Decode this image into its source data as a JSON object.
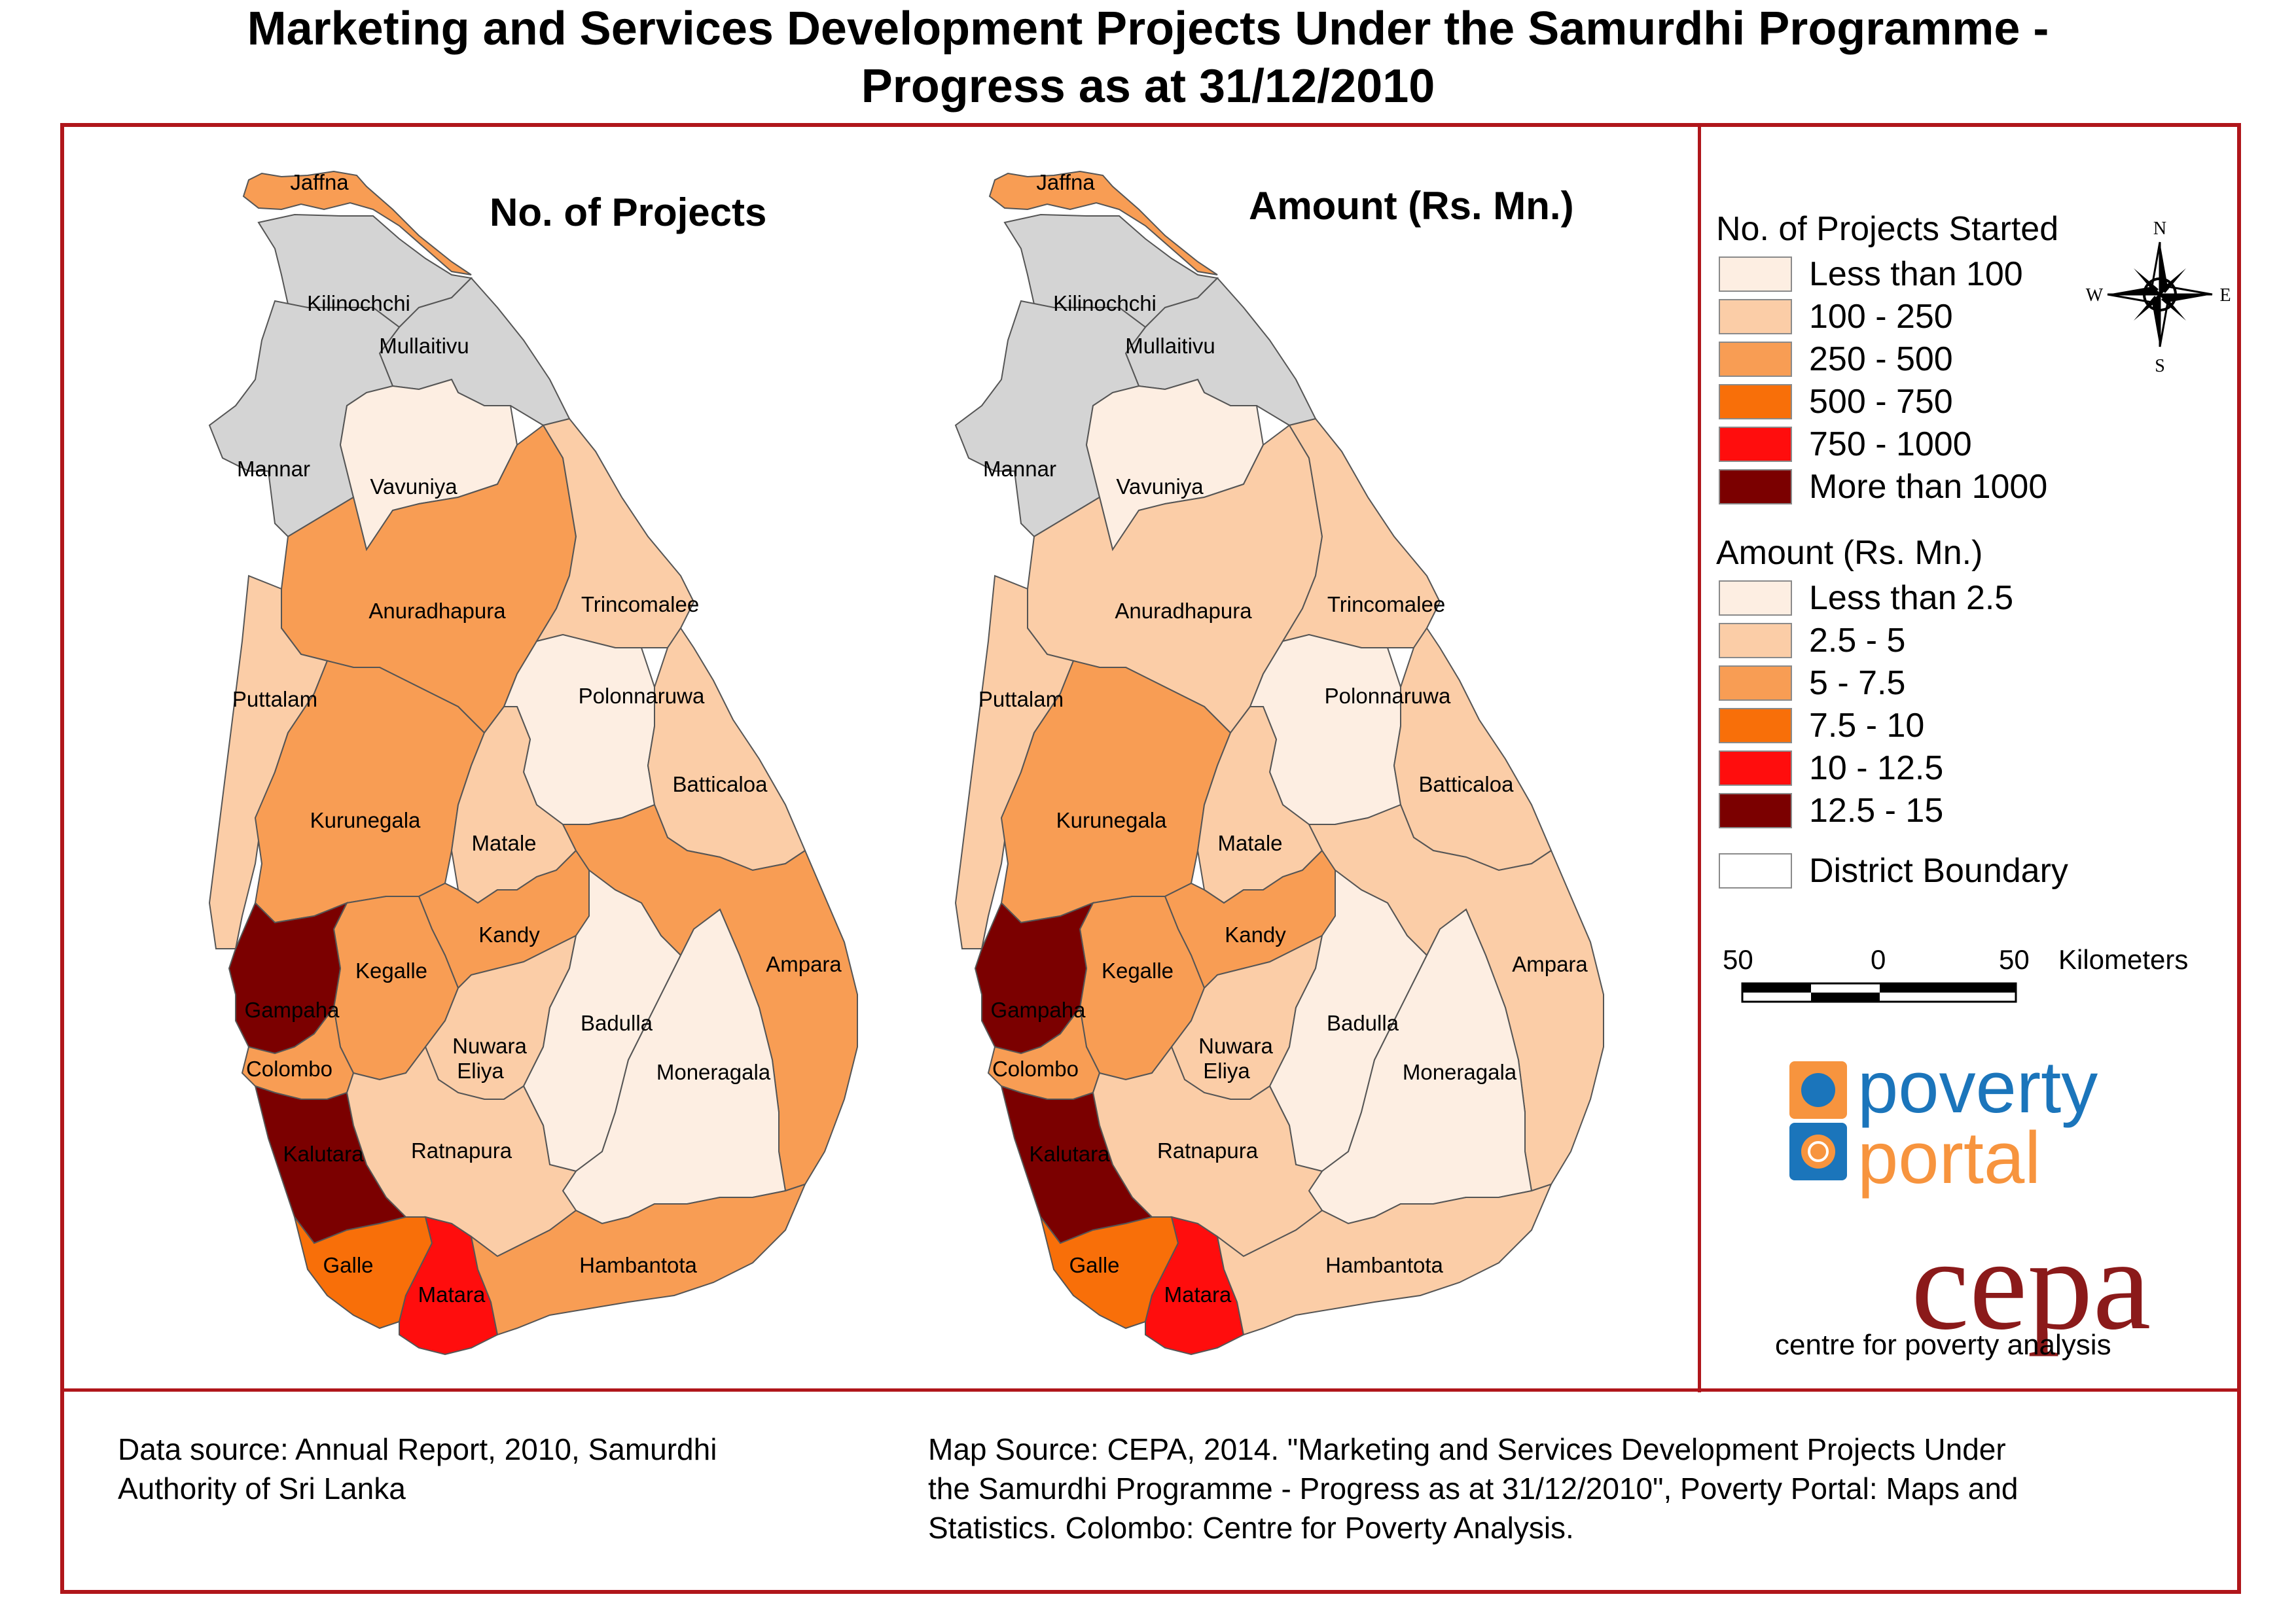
{
  "title": {
    "line1": "Marketing and Services Development Projects Under the Samurdhi Programme  -",
    "line2": "Progress as at 31/12/2010"
  },
  "maps": {
    "projects_title": "No. of Projects",
    "amount_title": "Amount (Rs. Mn.)"
  },
  "colors": {
    "class1": "#fdeee2",
    "class2": "#fbcda7",
    "class3": "#f89d54",
    "class4": "#f86f09",
    "class5": "#ff0d0d",
    "class6": "#7b0000",
    "no_data": "#d4d4d4",
    "frame": "#b0161b"
  },
  "districts": [
    {
      "name": "Jaffna",
      "projects": "class3",
      "amount": "class3"
    },
    {
      "name": "Kilinochchi",
      "projects": "no_data",
      "amount": "no_data"
    },
    {
      "name": "Mullaitivu",
      "projects": "no_data",
      "amount": "no_data"
    },
    {
      "name": "Mannar",
      "projects": "no_data",
      "amount": "no_data"
    },
    {
      "name": "Vavuniya",
      "projects": "class1",
      "amount": "class1"
    },
    {
      "name": "Anuradhapura",
      "projects": "class3",
      "amount": "class2"
    },
    {
      "name": "Trincomalee",
      "projects": "class2",
      "amount": "class2"
    },
    {
      "name": "Puttalam",
      "projects": "class2",
      "amount": "class2"
    },
    {
      "name": "Polonnaruwa",
      "projects": "class1",
      "amount": "class1"
    },
    {
      "name": "Batticaloa",
      "projects": "class2",
      "amount": "class2"
    },
    {
      "name": "Kurunegala",
      "projects": "class3",
      "amount": "class3"
    },
    {
      "name": "Matale",
      "projects": "class2",
      "amount": "class2"
    },
    {
      "name": "Kandy",
      "projects": "class3",
      "amount": "class3"
    },
    {
      "name": "Ampara",
      "projects": "class3",
      "amount": "class2"
    },
    {
      "name": "Kegalle",
      "projects": "class3",
      "amount": "class3"
    },
    {
      "name": "Gampaha",
      "projects": "class6",
      "amount": "class6"
    },
    {
      "name": "Colombo",
      "projects": "class3",
      "amount": "class3"
    },
    {
      "name": "Nuwara Eliya",
      "label1": "Nuwara",
      "label2": "Eliya",
      "projects": "class2",
      "amount": "class2"
    },
    {
      "name": "Badulla",
      "projects": "class1",
      "amount": "class1"
    },
    {
      "name": "Moneragala",
      "projects": "class1",
      "amount": "class1"
    },
    {
      "name": "Kalutara",
      "projects": "class6",
      "amount": "class6"
    },
    {
      "name": "Ratnapura",
      "projects": "class2",
      "amount": "class2"
    },
    {
      "name": "Galle",
      "projects": "class4",
      "amount": "class4"
    },
    {
      "name": "Matara",
      "projects": "class5",
      "amount": "class5"
    },
    {
      "name": "Hambantota",
      "projects": "class3",
      "amount": "class2"
    }
  ],
  "legend": {
    "projects_heading": "No. of Projects Started",
    "projects_classes": [
      "Less than  100",
      "100 - 250",
      "250 - 500",
      "500 - 750",
      "750 - 1000",
      "More than 1000"
    ],
    "amount_heading": "Amount (Rs. Mn.)",
    "amount_classes": [
      "Less than 2.5",
      "2.5 - 5",
      "5 - 7.5",
      "7.5 - 10",
      "10 - 12.5",
      "12.5 - 15"
    ],
    "boundary_label": "District Boundary"
  },
  "compass": {
    "n": "N",
    "s": "S",
    "e": "E",
    "w": "W"
  },
  "scale": {
    "left": "50",
    "mid": "0",
    "right": "50",
    "unit": "Kilometers"
  },
  "logos": {
    "poverty_line1": "poverty",
    "poverty_line2": "portal",
    "cepa": "cepa",
    "cepa_tagline": "centre for poverty analysis"
  },
  "footer": {
    "data_source_1": "Data source: Annual Report, 2010, Samurdhi",
    "data_source_2": "Authority of Sri Lanka",
    "map_source_1": "Map Source: CEPA, 2014. \"Marketing and Services Development Projects Under",
    "map_source_2": "the Samurdhi Programme  - Progress as at 31/12/2010\", Poverty Portal: Maps and",
    "map_source_3": "Statistics. Colombo: Centre for Poverty Analysis."
  }
}
